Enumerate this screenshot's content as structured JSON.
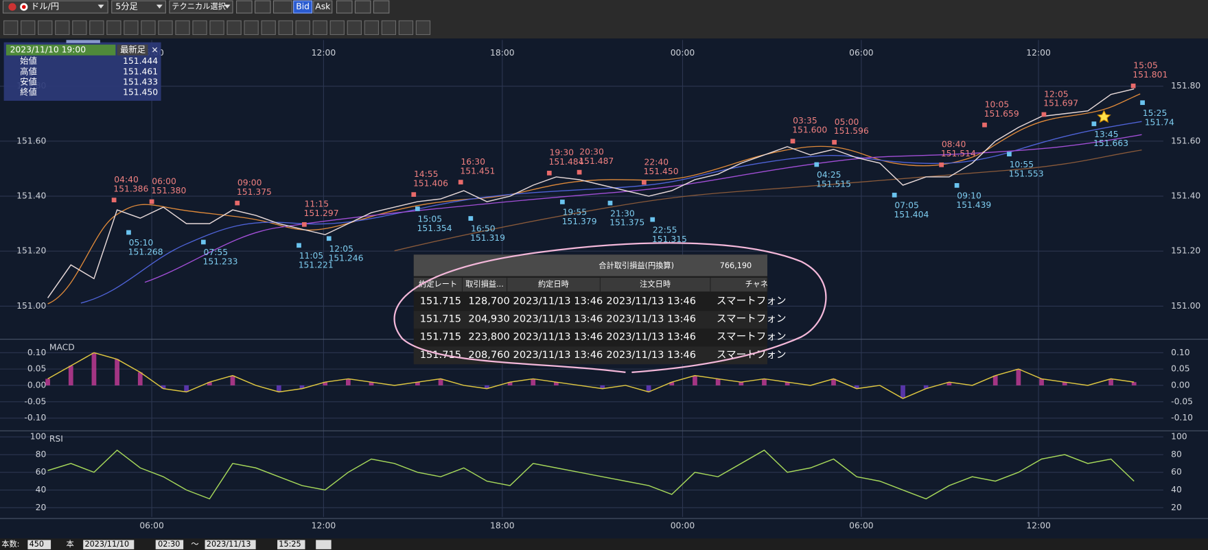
{
  "toolbar": {
    "pair": "ドル/円",
    "timeframe": "5分足",
    "technical": "テクニカル選択",
    "bid": "Bid",
    "ask": "Ask"
  },
  "ohlc_panel": {
    "datetime": "2023/11/10 19:00",
    "mode": "最新足",
    "close_button": "×",
    "rows": [
      {
        "label": "始値",
        "value": "151.444"
      },
      {
        "label": "高値",
        "value": "151.461"
      },
      {
        "label": "安値",
        "value": "151.433"
      },
      {
        "label": "終値",
        "value": "151.450"
      }
    ]
  },
  "chart": {
    "time_labels": [
      "06:00",
      "12:00",
      "18:00",
      "00:00",
      "06:00",
      "12:00"
    ],
    "price_ticks": [
      {
        "value": 151.8,
        "label": "151.80"
      },
      {
        "value": 151.6,
        "label": "151.60"
      },
      {
        "value": 151.4,
        "label": "151.40"
      },
      {
        "value": 151.2,
        "label": "151.20"
      },
      {
        "value": 151,
        "label": "151.00"
      }
    ],
    "price_series": [
      151.03,
      151.15,
      151.1,
      151.35,
      151.32,
      151.36,
      151.3,
      151.3,
      151.35,
      151.33,
      151.3,
      151.28,
      151.26,
      151.3,
      151.34,
      151.36,
      151.38,
      151.39,
      151.42,
      151.38,
      151.4,
      151.44,
      151.47,
      151.46,
      151.44,
      151.42,
      151.4,
      151.42,
      151.46,
      151.48,
      151.52,
      151.55,
      151.58,
      151.55,
      151.57,
      151.54,
      151.52,
      151.44,
      151.47,
      151.47,
      151.52,
      151.6,
      151.65,
      151.69,
      151.7,
      151.71,
      151.77,
      151.79
    ],
    "highs": [
      {
        "time": "04:40",
        "price": 151.386
      },
      {
        "time": "06:00",
        "price": {
          "value": 151.38,
          "label": "151.380"
        }
      },
      {
        "time": "09:00",
        "price": 151.375
      },
      {
        "time": "11:15",
        "price": 151.297
      },
      {
        "time": "14:55",
        "price": 151.406
      },
      {
        "time": "16:30",
        "price": 151.451
      },
      {
        "time": "19:30",
        "price": 151.484
      },
      {
        "time": "20:30",
        "price": 151.487
      },
      {
        "time": "22:40",
        "price": {
          "value": 151.45,
          "label": "151.450"
        }
      },
      {
        "time": "03:35",
        "price": {
          "value": 151.6,
          "label": "151.600"
        }
      },
      {
        "time": "05:00",
        "price": 151.596
      },
      {
        "time": "08:40",
        "price": 151.514
      },
      {
        "time": "10:05",
        "price": 151.659
      },
      {
        "time": "12:05",
        "price": 151.697
      },
      {
        "time": "15:05",
        "price": 151.801
      }
    ],
    "lows": [
      {
        "time": "05:10",
        "price": 151.268
      },
      {
        "time": "07:55",
        "price": 151.233
      },
      {
        "time": "11:05",
        "price": 151.221
      },
      {
        "time": "12:05",
        "price": 151.246
      },
      {
        "time": "15:05",
        "price": 151.354
      },
      {
        "time": "16:50",
        "price": 151.319
      },
      {
        "time": "19:55",
        "price": 151.379
      },
      {
        "time": "21:30",
        "price": 151.375
      },
      {
        "time": "22:55",
        "price": 151.315
      },
      {
        "time": "04:25",
        "price": 151.515
      },
      {
        "time": "07:05",
        "price": 151.404
      },
      {
        "time": "09:10",
        "price": 151.439
      },
      {
        "time": "10:55",
        "price": 151.553
      },
      {
        "time": "13:45",
        "price": 151.663
      },
      {
        "time": "15:25",
        "price": 151.74
      }
    ],
    "macd": {
      "label": "MACD",
      "ticks": [
        {
          "value": 0.1,
          "label": "0.10"
        },
        {
          "value": 0.05,
          "label": "0.05"
        },
        {
          "value": 0,
          "label": "0.00"
        },
        {
          "value": -0.05,
          "label": "-0.05"
        },
        {
          "value": -0.1,
          "label": "-0.10"
        }
      ],
      "values": [
        0.02,
        0.06,
        0.1,
        0.08,
        0.04,
        -0.01,
        -0.02,
        0.01,
        0.03,
        0,
        -0.02,
        -0.01,
        0.01,
        0.02,
        0.01,
        0,
        0.01,
        0.02,
        0,
        -0.01,
        0.01,
        0.02,
        0.01,
        0,
        -0.01,
        0,
        -0.02,
        0.01,
        0.03,
        0.02,
        0.01,
        0.02,
        0.01,
        0,
        0.02,
        -0.01,
        0,
        -0.04,
        -0.01,
        0.01,
        0,
        0.03,
        0.05,
        0.02,
        0.01,
        0,
        0.02,
        0.01
      ]
    },
    "rsi": {
      "label": "RSI",
      "ticks": [
        100,
        80,
        60,
        40,
        20
      ],
      "values": [
        62,
        70,
        60,
        85,
        65,
        55,
        40,
        30,
        70,
        65,
        55,
        45,
        40,
        60,
        75,
        70,
        60,
        55,
        65,
        50,
        45,
        70,
        65,
        60,
        55,
        50,
        45,
        35,
        60,
        55,
        70,
        85,
        60,
        65,
        75,
        55,
        50,
        40,
        30,
        45,
        55,
        50,
        60,
        75,
        80,
        70,
        75,
        50
      ]
    }
  },
  "trade_table": {
    "summary_label": "合計取引損益(円換算)",
    "summary_value": "766,190",
    "columns": [
      "約定レート",
      "取引損益...",
      "約定日時",
      "注文日時",
      "チャネ"
    ],
    "rows": [
      [
        "151.715",
        "128,700",
        "2023/11/13 13:46",
        "2023/11/13 13:46",
        "スマートフォン"
      ],
      [
        "151.715",
        "204,930",
        "2023/11/13 13:46",
        "2023/11/13 13:46",
        "スマートフォン"
      ],
      [
        "151.715",
        "223,800",
        "2023/11/13 13:46",
        "2023/11/13 13:46",
        "スマートフォン"
      ],
      [
        "151.715",
        "208,760",
        "2023/11/13 13:46",
        "2023/11/13 13:46",
        "スマートフォン"
      ]
    ]
  },
  "footer": {
    "count_label": "本数:",
    "count": "450",
    "unit": "本",
    "from_date": "2023/11/10",
    "from_time": "02:30",
    "tilde": "～",
    "to_date": "2023/11/13",
    "to_time": "15:25"
  }
}
